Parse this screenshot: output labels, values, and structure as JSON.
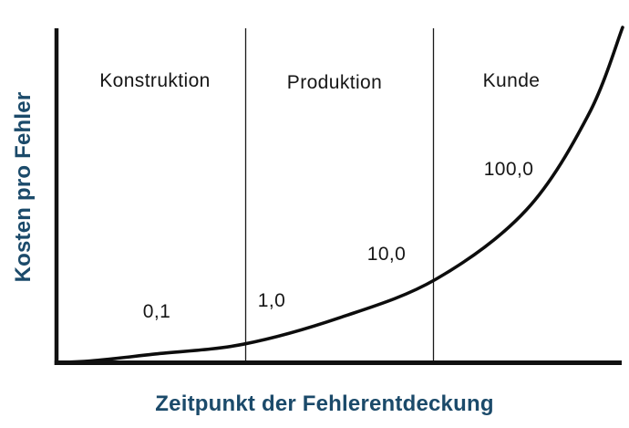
{
  "axes": {
    "y_label": "Kosten pro Fehler",
    "x_label": "Zeitpunkt der Fehlerentdeckung"
  },
  "colors": {
    "axis_label": "#1b4a6a",
    "line": "#111111",
    "divider": "#1a1a1a",
    "background": "#ffffff"
  },
  "chart_data": {
    "type": "line",
    "title": "",
    "xlabel": "Zeitpunkt der Fehlerentdeckung",
    "ylabel": "Kosten pro Fehler",
    "categories": [
      "Konstruktion",
      "Produktion",
      "Kunde"
    ],
    "annotations": [
      "0,1",
      "1,0",
      "10,0",
      "100,0"
    ],
    "series": [
      {
        "name": "Kosten pro Fehler",
        "values_at_annotations": [
          0.1,
          1.0,
          10.0,
          100.0
        ]
      }
    ],
    "grid": false,
    "legend": false,
    "numeric_axis_ticks": false,
    "curve_shape": "exponential",
    "curve_points_norm": [
      [
        0.0,
        0.0
      ],
      [
        0.06,
        0.004
      ],
      [
        0.17,
        0.024
      ],
      [
        0.33,
        0.054
      ],
      [
        0.5,
        0.133
      ],
      [
        0.67,
        0.248
      ],
      [
        0.83,
        0.455
      ],
      [
        0.94,
        0.74
      ],
      [
        1.0,
        1.0
      ]
    ]
  }
}
